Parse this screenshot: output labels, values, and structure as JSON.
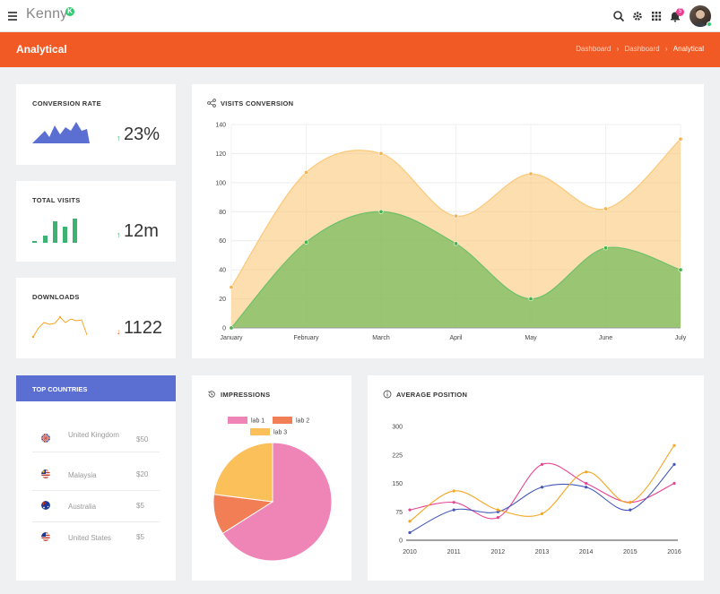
{
  "header": {
    "logo_text": "Kenny",
    "logo_badge": "K",
    "notification_count": "5"
  },
  "page": {
    "title": "Analytical",
    "breadcrumb": [
      "Dashboard",
      "Dashboard",
      "Analytical"
    ]
  },
  "stats": [
    {
      "title": "CONVERSION RATE",
      "value": "23%",
      "trend": "up"
    },
    {
      "title": "TOTAL VISITS",
      "value": "12m",
      "trend": "up"
    },
    {
      "title": "DOWNLOADS",
      "value": "1122",
      "trend": "down"
    }
  ],
  "colors": {
    "accent": "#f15a24",
    "blue": "#5b6ed1",
    "green": "#3cb371",
    "orange": "#f5a623"
  },
  "visits": {
    "title": "VISITS CONVERSION",
    "chart_data": {
      "type": "area",
      "categories": [
        "January",
        "February",
        "March",
        "April",
        "May",
        "June",
        "July"
      ],
      "series": [
        {
          "values": [
            28,
            107,
            120,
            77,
            106,
            82,
            130
          ]
        },
        {
          "values": [
            0,
            59,
            80,
            58,
            20,
            55,
            40
          ]
        }
      ],
      "yticks": [
        "0",
        "20",
        "40",
        "60",
        "80",
        "100",
        "120",
        "140"
      ],
      "ylim": [
        0,
        140
      ]
    }
  },
  "countries": {
    "title": "TOP COUNTRIES",
    "rows": [
      {
        "name": "United Kingdom",
        "value": "$50"
      },
      {
        "name": "Malaysia",
        "value": "$20"
      },
      {
        "name": "Australia",
        "value": "$5"
      },
      {
        "name": "United States",
        "value": "$5"
      }
    ]
  },
  "impressions": {
    "title": "IMPRESSIONS",
    "chart_data": {
      "type": "pie",
      "labels": [
        "lab 1",
        "lab 2",
        "lab 3"
      ],
      "values": [
        66,
        11,
        23
      ],
      "colors": [
        "#ef84b6",
        "#f27e55",
        "#fcc05a"
      ]
    }
  },
  "position": {
    "title": "AVERAGE POSITION",
    "chart_data": {
      "type": "line",
      "x": [
        "2010",
        "2011",
        "2012",
        "2013",
        "2014",
        "2015",
        "2016"
      ],
      "yticks": [
        "0",
        "75",
        "150",
        "225",
        "300"
      ],
      "ylim": [
        0,
        300
      ],
      "series": [
        {
          "values": [
            80,
            100,
            60,
            200,
            150,
            100,
            150
          ],
          "color": "#e84393"
        },
        {
          "values": [
            20,
            80,
            75,
            140,
            140,
            80,
            200
          ],
          "color": "#4457b8"
        },
        {
          "values": [
            50,
            130,
            80,
            70,
            180,
            100,
            250
          ],
          "color": "#f5a623"
        }
      ]
    }
  }
}
